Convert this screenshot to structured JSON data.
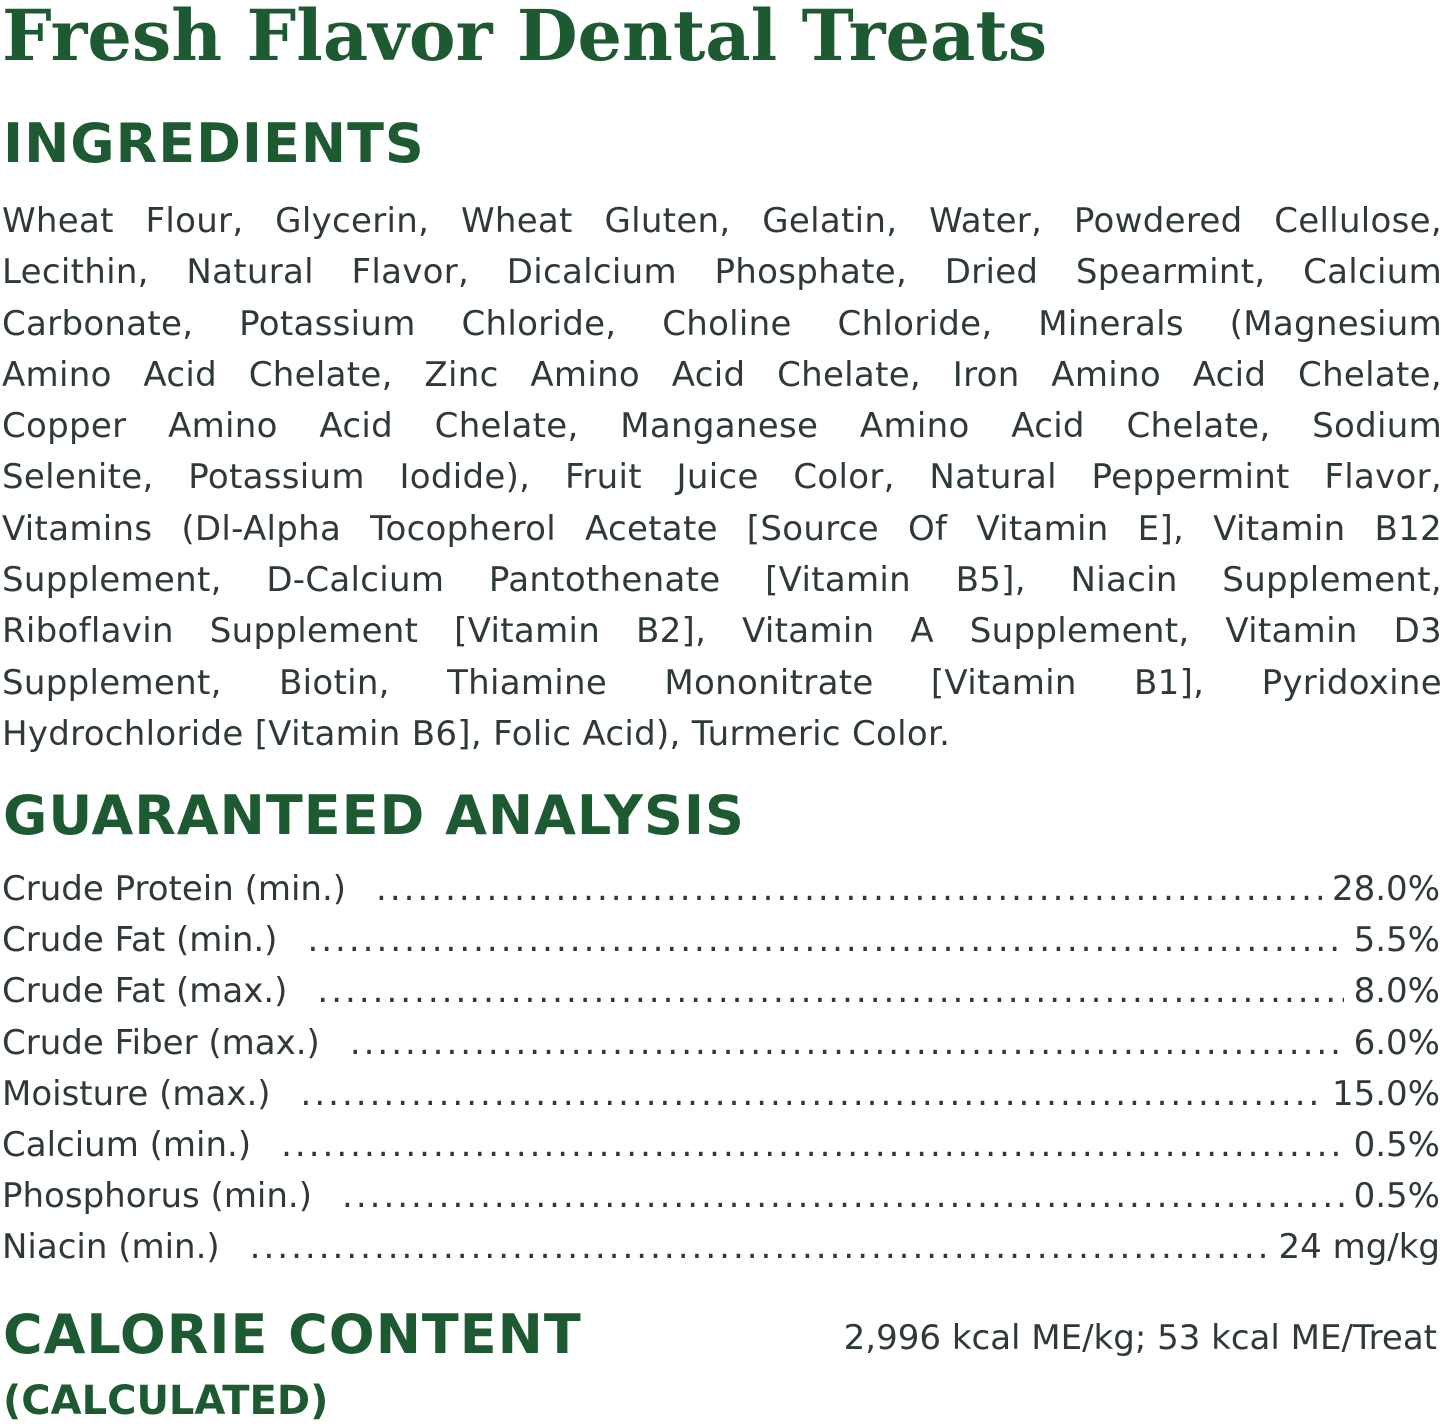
{
  "title": "Fresh Flavor Dental Treats",
  "ingredients": {
    "heading": "INGREDIENTS",
    "lines": [
      "Wheat Flour, Glycerin, Wheat Gluten, Gelatin, Water, Powdered Cellulose,",
      "Lecithin, Natural Flavor, Dicalcium Phosphate, Dried Spearmint, Calcium",
      "Carbonate, Potassium Chloride, Choline Chloride, Minerals (Magnesium",
      "Amino Acid Chelate, Zinc Amino Acid Chelate, Iron Amino Acid Chelate,",
      "Copper Amino Acid Chelate, Manganese Amino Acid Chelate, Sodium",
      "Selenite, Potassium Iodide), Fruit Juice Color, Natural Peppermint Flavor,",
      "Vitamins (Dl-Alpha Tocopherol Acetate [Source Of Vitamin E], Vitamin B12",
      "Supplement, D-Calcium Pantothenate [Vitamin B5], Niacin Supplement,",
      "Riboflavin Supplement [Vitamin B2], Vitamin A Supplement, Vitamin D3",
      "Supplement, Biotin, Thiamine Mononitrate [Vitamin B1], Pyridoxine",
      "Hydrochloride [Vitamin B6], Folic Acid), Turmeric Color."
    ]
  },
  "analysis": {
    "heading": "GUARANTEED ANALYSIS",
    "rows": [
      {
        "label": "Crude Protein (min.)",
        "value": "28.0%"
      },
      {
        "label": "Crude Fat (min.)",
        "value": "5.5%"
      },
      {
        "label": "Crude Fat (max.)",
        "value": "8.0%"
      },
      {
        "label": "Crude Fiber (max.)",
        "value": "6.0%"
      },
      {
        "label": "Moisture (max.)",
        "value": "15.0%"
      },
      {
        "label": "Calcium (min.)",
        "value": "0.5%"
      },
      {
        "label": "Phosphorus (min.)",
        "value": "0.5%"
      },
      {
        "label": "Niacin (min.)",
        "value": "24 mg/kg"
      }
    ]
  },
  "calorie": {
    "heading": "CALORIE CONTENT",
    "subheading": "(CALCULATED)",
    "value": "2,996 kcal ME/kg; 53 kcal ME/Treat"
  },
  "colors": {
    "heading_green": "#1d5a31",
    "body_text": "#2f3a33"
  }
}
